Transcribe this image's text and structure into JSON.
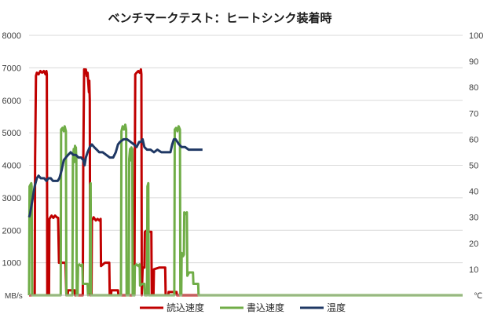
{
  "chart_data": {
    "type": "line",
    "title": "ベンチマークテスト：ヒートシンク装着時",
    "y_left": {
      "min": 0,
      "max": 8000,
      "step": 1000,
      "unit": "MB/s"
    },
    "y_right": {
      "min": 0,
      "max": 100,
      "step": 10,
      "unit": "℃"
    },
    "grid": "horizontal",
    "legend_position": "bottom",
    "x_range": [
      0,
      1000
    ],
    "series": [
      {
        "name": "読込速度",
        "color": "#c00000",
        "axis": "left",
        "points": [
          [
            0,
            0
          ],
          [
            13,
            0
          ],
          [
            14,
            4200
          ],
          [
            16,
            6750
          ],
          [
            18,
            6850
          ],
          [
            22,
            6800
          ],
          [
            26,
            6900
          ],
          [
            30,
            6850
          ],
          [
            34,
            6900
          ],
          [
            38,
            6800
          ],
          [
            40,
            6900
          ],
          [
            41,
            6800
          ],
          [
            42,
            0
          ],
          [
            46,
            0
          ],
          [
            47,
            2350
          ],
          [
            52,
            2450
          ],
          [
            56,
            2380
          ],
          [
            60,
            2450
          ],
          [
            64,
            2400
          ],
          [
            67,
            2380
          ],
          [
            69,
            1000
          ],
          [
            80,
            1000
          ],
          [
            84,
            1000
          ],
          [
            86,
            0
          ],
          [
            89,
            0
          ],
          [
            90,
            150
          ],
          [
            105,
            150
          ],
          [
            106,
            0
          ],
          [
            124,
            0
          ],
          [
            125,
            4000
          ],
          [
            127,
            6950
          ],
          [
            129,
            6850
          ],
          [
            131,
            6950
          ],
          [
            133,
            6750
          ],
          [
            135,
            6850
          ],
          [
            138,
            6250
          ],
          [
            139,
            6600
          ],
          [
            140,
            6000
          ],
          [
            141,
            0
          ],
          [
            144,
            0
          ],
          [
            145,
            2300
          ],
          [
            149,
            2400
          ],
          [
            154,
            2300
          ],
          [
            158,
            2350
          ],
          [
            162,
            2300
          ],
          [
            165,
            2350
          ],
          [
            166,
            900
          ],
          [
            175,
            1000
          ],
          [
            185,
            1000
          ],
          [
            186,
            0
          ],
          [
            189,
            0
          ],
          [
            190,
            150
          ],
          [
            205,
            150
          ],
          [
            206,
            0
          ],
          [
            243,
            0
          ],
          [
            244,
            4200
          ],
          [
            245,
            6800
          ],
          [
            248,
            6850
          ],
          [
            252,
            6900
          ],
          [
            255,
            6850
          ],
          [
            258,
            6950
          ],
          [
            259,
            6800
          ],
          [
            260,
            0
          ],
          [
            262,
            850
          ],
          [
            266,
            850
          ],
          [
            267,
            1950
          ],
          [
            272,
            2000
          ],
          [
            278,
            1950
          ],
          [
            282,
            1950
          ],
          [
            283,
            0
          ],
          [
            287,
            0
          ],
          [
            288,
            800
          ],
          [
            300,
            850
          ],
          [
            314,
            850
          ],
          [
            315,
            0
          ],
          [
            321,
            0
          ],
          [
            322,
            100
          ],
          [
            340,
            100
          ],
          [
            341,
            0
          ],
          [
            1000,
            0
          ]
        ]
      },
      {
        "name": "書込速度",
        "color": "#70ad47",
        "axis": "left",
        "points": [
          [
            0,
            0
          ],
          [
            1,
            3350
          ],
          [
            3,
            3400
          ],
          [
            5,
            3450
          ],
          [
            6,
            3350
          ],
          [
            7,
            0
          ],
          [
            73,
            0
          ],
          [
            74,
            5100
          ],
          [
            77,
            5150
          ],
          [
            80,
            5050
          ],
          [
            82,
            5200
          ],
          [
            85,
            5050
          ],
          [
            86,
            0
          ],
          [
            100,
            0
          ],
          [
            101,
            4200
          ],
          [
            103,
            4500
          ],
          [
            104,
            4100
          ],
          [
            106,
            4600
          ],
          [
            107,
            4300
          ],
          [
            108,
            4550
          ],
          [
            109,
            4200
          ],
          [
            110,
            0
          ],
          [
            112,
            0
          ],
          [
            113,
            900
          ],
          [
            116,
            950
          ],
          [
            120,
            900
          ],
          [
            123,
            950
          ],
          [
            124,
            350
          ],
          [
            130,
            350
          ],
          [
            135,
            350
          ],
          [
            136,
            0
          ],
          [
            137,
            100
          ],
          [
            140,
            100
          ],
          [
            141,
            3400
          ],
          [
            142,
            3450
          ],
          [
            143,
            0
          ],
          [
            212,
            0
          ],
          [
            213,
            5050
          ],
          [
            216,
            5200
          ],
          [
            219,
            5100
          ],
          [
            222,
            5250
          ],
          [
            224,
            5100
          ],
          [
            225,
            0
          ],
          [
            230,
            0
          ],
          [
            231,
            4200
          ],
          [
            233,
            4500
          ],
          [
            234,
            4150
          ],
          [
            236,
            4550
          ],
          [
            237,
            4300
          ],
          [
            238,
            4500
          ],
          [
            239,
            0
          ],
          [
            243,
            0
          ],
          [
            244,
            900
          ],
          [
            248,
            950
          ],
          [
            252,
            900
          ],
          [
            255,
            950
          ],
          [
            256,
            300
          ],
          [
            262,
            350
          ],
          [
            266,
            350
          ],
          [
            267,
            0
          ],
          [
            272,
            0
          ],
          [
            273,
            3350
          ],
          [
            275,
            3450
          ],
          [
            276,
            0
          ],
          [
            335,
            0
          ],
          [
            336,
            5100
          ],
          [
            339,
            5150
          ],
          [
            342,
            5050
          ],
          [
            345,
            5200
          ],
          [
            348,
            5100
          ],
          [
            349,
            0
          ],
          [
            351,
            0
          ],
          [
            352,
            1300
          ],
          [
            355,
            1200
          ],
          [
            357,
            1250
          ],
          [
            358,
            2550
          ],
          [
            361,
            2500
          ],
          [
            364,
            2550
          ],
          [
            365,
            600
          ],
          [
            369,
            700
          ],
          [
            374,
            700
          ],
          [
            378,
            700
          ],
          [
            379,
            350
          ],
          [
            385,
            350
          ],
          [
            390,
            350
          ],
          [
            391,
            0
          ],
          [
            1000,
            0
          ]
        ]
      },
      {
        "name": "温度",
        "color": "#1f3864",
        "axis": "right",
        "points": [
          [
            0,
            30
          ],
          [
            2,
            31
          ],
          [
            5,
            34
          ],
          [
            9,
            38
          ],
          [
            13,
            42
          ],
          [
            18,
            45
          ],
          [
            22,
            46
          ],
          [
            27,
            45
          ],
          [
            31,
            45
          ],
          [
            35,
            45
          ],
          [
            40,
            44
          ],
          [
            45,
            45
          ],
          [
            50,
            45
          ],
          [
            55,
            44
          ],
          [
            60,
            44
          ],
          [
            66,
            44
          ],
          [
            70,
            45
          ],
          [
            75,
            48
          ],
          [
            80,
            52
          ],
          [
            85,
            53
          ],
          [
            90,
            54
          ],
          [
            96,
            55
          ],
          [
            102,
            54
          ],
          [
            108,
            54
          ],
          [
            114,
            53
          ],
          [
            120,
            53
          ],
          [
            125,
            52
          ],
          [
            128,
            50
          ],
          [
            131,
            53
          ],
          [
            135,
            55
          ],
          [
            140,
            57
          ],
          [
            145,
            58
          ],
          [
            150,
            57
          ],
          [
            156,
            56
          ],
          [
            162,
            55
          ],
          [
            170,
            55
          ],
          [
            178,
            54
          ],
          [
            186,
            53
          ],
          [
            194,
            53
          ],
          [
            200,
            55
          ],
          [
            205,
            58
          ],
          [
            210,
            59
          ],
          [
            218,
            60
          ],
          [
            226,
            60
          ],
          [
            234,
            59
          ],
          [
            242,
            58
          ],
          [
            248,
            57
          ],
          [
            254,
            59
          ],
          [
            258,
            59
          ],
          [
            262,
            60
          ],
          [
            266,
            57
          ],
          [
            272,
            56
          ],
          [
            280,
            56
          ],
          [
            288,
            55
          ],
          [
            296,
            56
          ],
          [
            305,
            55
          ],
          [
            315,
            55
          ],
          [
            322,
            55
          ],
          [
            326,
            55
          ],
          [
            330,
            58
          ],
          [
            334,
            60
          ],
          [
            338,
            60
          ],
          [
            342,
            59
          ],
          [
            346,
            58
          ],
          [
            352,
            57
          ],
          [
            360,
            57
          ],
          [
            368,
            56
          ],
          [
            376,
            56
          ],
          [
            384,
            56
          ],
          [
            392,
            56
          ],
          [
            400,
            56
          ]
        ]
      }
    ],
    "legend": [
      {
        "label": "読込速度",
        "color": "#c00000"
      },
      {
        "label": "書込速度",
        "color": "#70ad47"
      },
      {
        "label": "温度",
        "color": "#1f3864"
      }
    ]
  }
}
